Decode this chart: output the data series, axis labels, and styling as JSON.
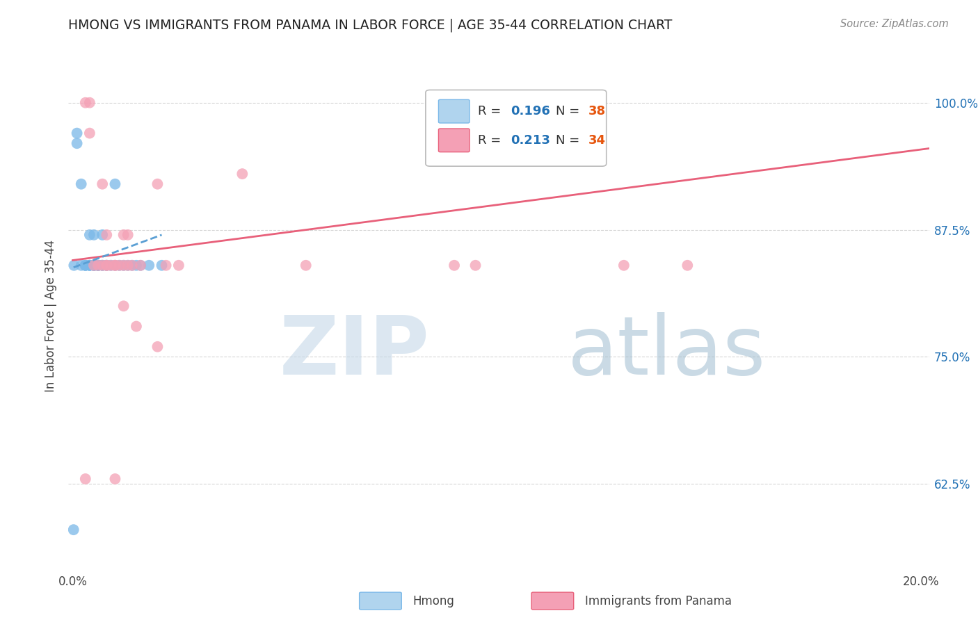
{
  "title": "HMONG VS IMMIGRANTS FROM PANAMA IN LABOR FORCE | AGE 35-44 CORRELATION CHART",
  "source": "Source: ZipAtlas.com",
  "xlabel": "",
  "ylabel": "In Labor Force | Age 35-44",
  "xlim": [
    -0.001,
    0.202
  ],
  "ylim": [
    0.54,
    1.04
  ],
  "xtick_positions": [
    0.0,
    0.04,
    0.08,
    0.12,
    0.16,
    0.2
  ],
  "xticklabels": [
    "0.0%",
    "",
    "",
    "",
    "",
    "20.0%"
  ],
  "ytick_positions": [
    0.625,
    0.75,
    0.875,
    1.0
  ],
  "yticklabels": [
    "62.5%",
    "75.0%",
    "87.5%",
    "100.0%"
  ],
  "hmong_color": "#7ab8e8",
  "panama_color": "#f4a0b5",
  "trendline_hmong_color": "#5a9fd4",
  "trendline_panama_color": "#e8607a",
  "legend_R_color": "#2171b5",
  "legend_N_color": "#e6550d",
  "grid_color": "#cccccc",
  "watermark_zip_color": "#c8dae8",
  "watermark_atlas_color": "#a8c4d8",
  "hmong_x": [
    0.0003,
    0.001,
    0.001,
    0.002,
    0.002,
    0.003,
    0.003,
    0.003,
    0.004,
    0.004,
    0.004,
    0.004,
    0.005,
    0.005,
    0.005,
    0.005,
    0.005,
    0.006,
    0.006,
    0.006,
    0.006,
    0.007,
    0.007,
    0.007,
    0.008,
    0.008,
    0.009,
    0.01,
    0.01,
    0.011,
    0.012,
    0.013,
    0.014,
    0.015,
    0.016,
    0.018,
    0.0002,
    0.021
  ],
  "hmong_y": [
    0.84,
    0.97,
    0.96,
    0.84,
    0.92,
    0.84,
    0.84,
    0.84,
    0.84,
    0.84,
    0.84,
    0.87,
    0.84,
    0.84,
    0.87,
    0.84,
    0.84,
    0.84,
    0.84,
    0.84,
    0.84,
    0.84,
    0.84,
    0.87,
    0.84,
    0.84,
    0.84,
    0.84,
    0.92,
    0.84,
    0.84,
    0.84,
    0.84,
    0.84,
    0.84,
    0.84,
    0.58,
    0.84
  ],
  "panama_x": [
    0.003,
    0.004,
    0.004,
    0.005,
    0.006,
    0.007,
    0.007,
    0.008,
    0.008,
    0.009,
    0.01,
    0.01,
    0.011,
    0.012,
    0.012,
    0.013,
    0.013,
    0.014,
    0.016,
    0.02,
    0.022,
    0.04,
    0.055,
    0.09,
    0.095,
    0.13,
    0.145,
    0.008,
    0.012,
    0.015,
    0.02,
    0.025,
    0.01,
    0.003
  ],
  "panama_y": [
    1.0,
    1.0,
    0.97,
    0.84,
    0.84,
    0.92,
    0.84,
    0.84,
    0.87,
    0.84,
    0.84,
    0.84,
    0.84,
    0.87,
    0.84,
    0.84,
    0.87,
    0.84,
    0.84,
    0.92,
    0.84,
    0.93,
    0.84,
    0.84,
    0.84,
    0.84,
    0.84,
    0.84,
    0.8,
    0.78,
    0.76,
    0.84,
    0.63,
    0.63
  ],
  "panama_trend_x0": 0.0,
  "panama_trend_x1": 0.202,
  "panama_trend_y0": 0.845,
  "panama_trend_y1": 0.955,
  "hmong_trend_x0": 0.0002,
  "hmong_trend_x1": 0.021,
  "hmong_trend_y0": 0.838,
  "hmong_trend_y1": 0.87
}
